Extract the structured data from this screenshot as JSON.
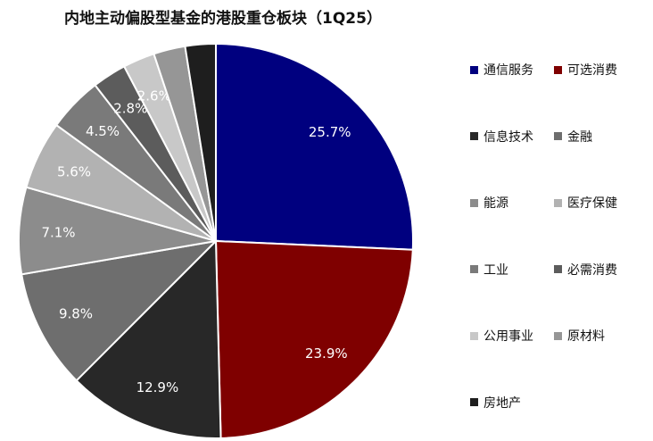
{
  "chart_data": {
    "type": "pie",
    "title": "内地主动偏股型基金的港股重仓板块（1Q25）",
    "legend_position": "right",
    "slices": [
      {
        "label": "通信服务",
        "value": 25.7,
        "value_label": "25.7%",
        "color": "#00007f",
        "label_color": "#ffffff"
      },
      {
        "label": "可选消费",
        "value": 23.9,
        "value_label": "23.9%",
        "color": "#7f0000",
        "label_color": "#ffffff"
      },
      {
        "label": "信息技术",
        "value": 12.9,
        "value_label": "12.9%",
        "color": "#282828",
        "label_color": "#ffffff"
      },
      {
        "label": "金融",
        "value": 9.8,
        "value_label": "9.8%",
        "color": "#6e6e6e",
        "label_color": "#ffffff"
      },
      {
        "label": "能源",
        "value": 7.1,
        "value_label": "7.1%",
        "color": "#8c8c8c",
        "label_color": "#ffffff"
      },
      {
        "label": "医疗保健",
        "value": 5.6,
        "value_label": "5.6%",
        "color": "#b2b2b2",
        "label_color": "#ffffff"
      },
      {
        "label": "工业",
        "value": 4.5,
        "value_label": "4.5%",
        "color": "#7a7a7a",
        "label_color": "#ffffff"
      },
      {
        "label": "必需消费",
        "value": 2.8,
        "value_label": "2.8%",
        "color": "#5c5c5c",
        "label_color": "#ffffff"
      },
      {
        "label": "公用事业",
        "value": 2.6,
        "value_label": "2.6%",
        "color": "#c8c8c8",
        "label_color": "#ffffff"
      },
      {
        "label": "原材料",
        "value": 2.6,
        "value_label": "",
        "color": "#969696",
        "label_color": "#ffffff"
      },
      {
        "label": "房地产",
        "value": 2.5,
        "value_label": "",
        "color": "#1e1e1e",
        "label_color": "#ffffff"
      }
    ]
  }
}
